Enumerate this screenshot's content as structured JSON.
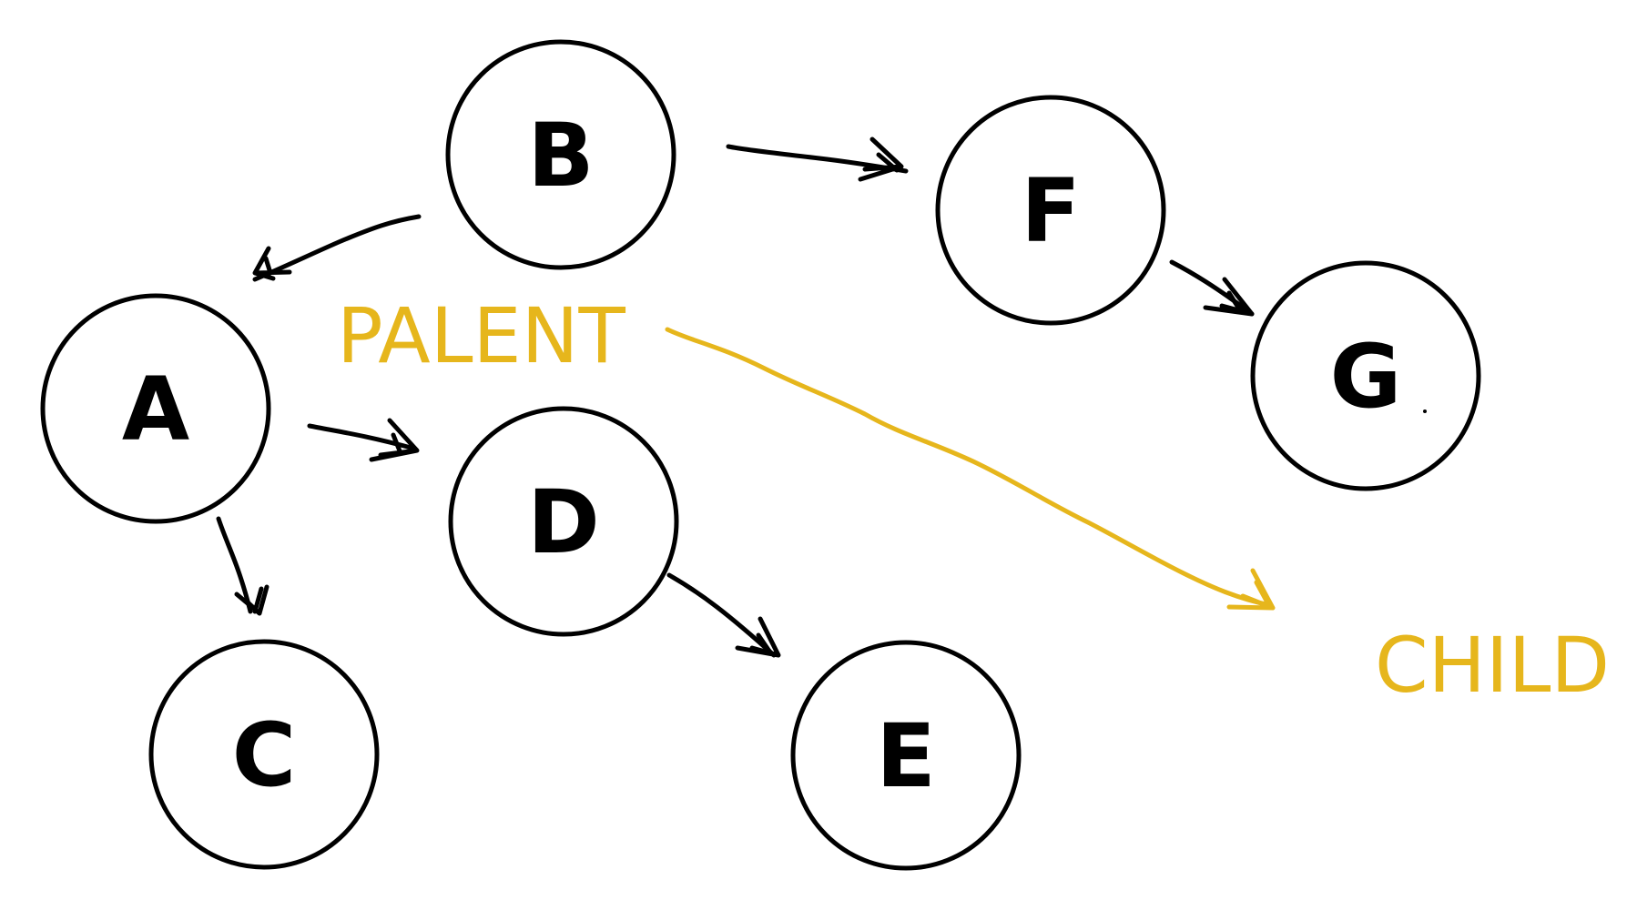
{
  "colors": {
    "ink": "#000000",
    "annotation": "#e6b61c"
  },
  "nodes": [
    {
      "id": "B",
      "label": "B"
    },
    {
      "id": "A",
      "label": "A"
    },
    {
      "id": "F",
      "label": "F"
    },
    {
      "id": "G",
      "label": "G"
    },
    {
      "id": "D",
      "label": "D"
    },
    {
      "id": "C",
      "label": "C"
    },
    {
      "id": "E",
      "label": "E"
    }
  ],
  "edges": [
    {
      "from": "B",
      "to": "A"
    },
    {
      "from": "B",
      "to": "F"
    },
    {
      "from": "F",
      "to": "G"
    },
    {
      "from": "A",
      "to": "D"
    },
    {
      "from": "A",
      "to": "C"
    },
    {
      "from": "D",
      "to": "E"
    }
  ],
  "legend": {
    "parent_label": "PALENT",
    "child_label": "CHILD"
  }
}
